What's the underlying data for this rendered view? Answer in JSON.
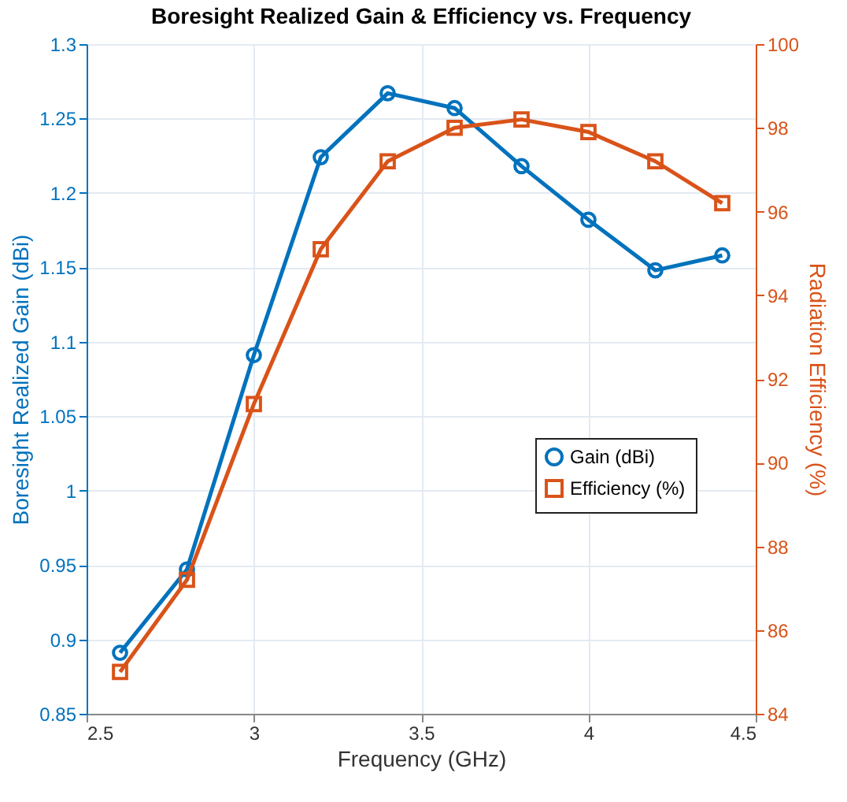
{
  "chart_data": {
    "type": "line",
    "title": "Boresight Realized Gain & Efficiency vs. Frequency",
    "xlabel": "Frequency (GHz)",
    "ylabel": "Boresight Realized Gain (dBi)",
    "y2label": "Radiation Efficiency (%)",
    "x": [
      2.6,
      2.8,
      3.0,
      3.2,
      3.4,
      3.6,
      3.8,
      4.0,
      4.2,
      4.4
    ],
    "series": [
      {
        "name": "Gain (dBi)",
        "color": "#0072bd",
        "marker": "circle",
        "values": [
          0.891,
          0.947,
          1.091,
          1.224,
          1.267,
          1.257,
          1.218,
          1.182,
          1.148,
          1.158
        ]
      },
      {
        "name": "Efficiency (%)",
        "color": "#d95319",
        "marker": "square",
        "axis": "y2",
        "values": [
          85.0,
          87.2,
          91.4,
          95.1,
          97.2,
          98.0,
          98.2,
          97.9,
          97.2,
          96.2
        ]
      }
    ],
    "xlim": [
      2.5,
      4.5
    ],
    "xticks": [
      2.5,
      3,
      3.5,
      4,
      4.5
    ],
    "ylim": [
      0.85,
      1.3
    ],
    "yticks": [
      0.85,
      0.9,
      0.95,
      1,
      1.05,
      1.1,
      1.15,
      1.2,
      1.25,
      1.3
    ],
    "y2lim": [
      84,
      100
    ],
    "y2ticks": [
      84,
      86,
      88,
      90,
      92,
      94,
      96,
      98,
      100
    ],
    "grid": true,
    "legend": "right",
    "line_style": "solid"
  }
}
